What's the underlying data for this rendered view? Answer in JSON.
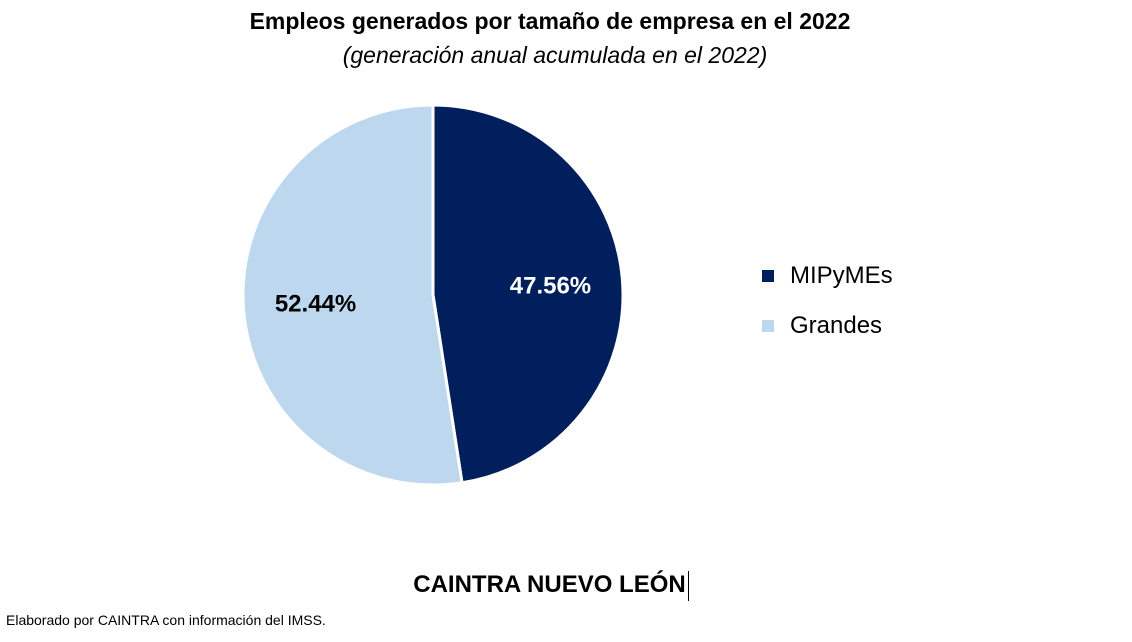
{
  "chart_data": {
    "type": "pie",
    "title": "Empleos generados por tamaño de empresa en el 2022",
    "subtitle": "(generación anual acumulada en el 2022)",
    "slices": [
      {
        "name": "MIPyMEs",
        "value": 47.56,
        "label": "47.56%",
        "color": "#001f5c",
        "label_color": "#ffffff"
      },
      {
        "name": "Grandes",
        "value": 52.44,
        "label": "52.44%",
        "color": "#bdd7ee",
        "label_color": "#000000"
      }
    ],
    "legend_position": "right"
  },
  "footer": {
    "brand": "CAINTRA NUEVO LEÓN",
    "source": "Elaborado por CAINTRA con información del IMSS."
  }
}
